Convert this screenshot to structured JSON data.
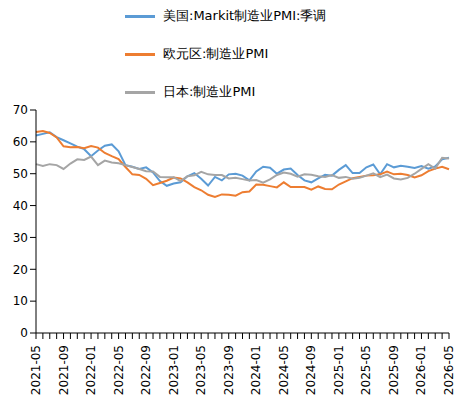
{
  "chart_data": {
    "type": "line",
    "legend": "top",
    "grid": false,
    "categories": [
      "2021-05",
      null,
      null,
      null,
      "2021-09",
      null,
      null,
      null,
      "2022-01",
      null,
      null,
      null,
      "2022-05",
      null,
      null,
      null,
      "2022-09",
      null,
      null,
      null,
      "2023-01",
      null,
      null,
      null,
      "2023-05",
      null,
      null,
      null,
      "2023-09",
      null,
      null,
      null,
      "2024-01",
      null,
      null,
      null,
      "2024-05",
      null,
      null,
      null,
      "2024-09",
      null,
      null,
      null,
      "2025-01",
      null,
      null,
      null,
      "2025-05",
      null,
      null,
      null,
      "2025-09",
      null,
      null,
      null,
      "2026-01",
      null,
      null,
      null,
      "2026-05"
    ],
    "ylim": [
      0,
      70
    ],
    "yticks": [
      0,
      10,
      20,
      30,
      40,
      50,
      60,
      70
    ],
    "series": [
      {
        "name": "美国:Markit制造业PMI:季调",
        "color": "#5b9bd5",
        "values": [
          62,
          62.5,
          63,
          61.5,
          60.5,
          59.5,
          58.5,
          57.7,
          55.5,
          57.3,
          58.8,
          59.2,
          57,
          52.7,
          52.2,
          51.5,
          52,
          50.4,
          47.7,
          46.2,
          46.9,
          47.3,
          49.2,
          50.2,
          48.4,
          46.3,
          49,
          47.9,
          49.8,
          50,
          49.4,
          47.9,
          50.7,
          52.2,
          51.9,
          50,
          51.3,
          51.6,
          49.6,
          47.9,
          47.3,
          48.5,
          49.7,
          49.4,
          51.2,
          52.7,
          50.2,
          50.2,
          52,
          52.9,
          49.8,
          53,
          52,
          52.5,
          52.2,
          51.8,
          52.4,
          51.6,
          52.3,
          54.5,
          55
        ]
      },
      {
        "name": "欧元区:制造业PMI",
        "color": "#ed7d31",
        "values": [
          63.1,
          63.4,
          62.8,
          61.4,
          58.6,
          58.3,
          58.4,
          58,
          58.7,
          58.2,
          56.5,
          55.5,
          54.6,
          52.1,
          49.8,
          49.6,
          48.4,
          46.4,
          47.1,
          47.8,
          48.8,
          48.5,
          47.3,
          45.8,
          44.8,
          43.4,
          42.7,
          43.5,
          43.4,
          43.1,
          44.2,
          44.4,
          46.6,
          46.5,
          46.1,
          45.7,
          47.3,
          45.8,
          45.8,
          45.8,
          45,
          46,
          45.2,
          45.1,
          46.6,
          47.6,
          48.6,
          49,
          49.4,
          49.5,
          49.8,
          50.7,
          49.8,
          50,
          49.6,
          48.8,
          49.5,
          50.8,
          51.6,
          52.2,
          51.4
        ]
      },
      {
        "name": "日本:制造业PMI",
        "color": "#a5a5a5",
        "values": [
          53,
          52.4,
          53,
          52.7,
          51.5,
          53.2,
          54.5,
          54.3,
          55.4,
          52.7,
          54.1,
          53.5,
          53.3,
          52.7,
          52.1,
          51.5,
          50.8,
          50.7,
          49,
          48.9,
          48.9,
          47.7,
          49.2,
          49.5,
          50.6,
          49.8,
          49.6,
          49.6,
          48.5,
          48.7,
          48.3,
          47.9,
          48,
          47.2,
          48.2,
          49.6,
          50.4,
          50,
          49.1,
          49.8,
          49.7,
          49.2,
          49,
          49.6,
          48.7,
          49,
          48.4,
          48.7,
          49.4,
          50.1,
          48.9,
          49.7,
          48.5,
          48.2,
          48.7,
          50,
          51.5,
          53,
          51.6,
          55,
          54.8
        ]
      }
    ]
  }
}
